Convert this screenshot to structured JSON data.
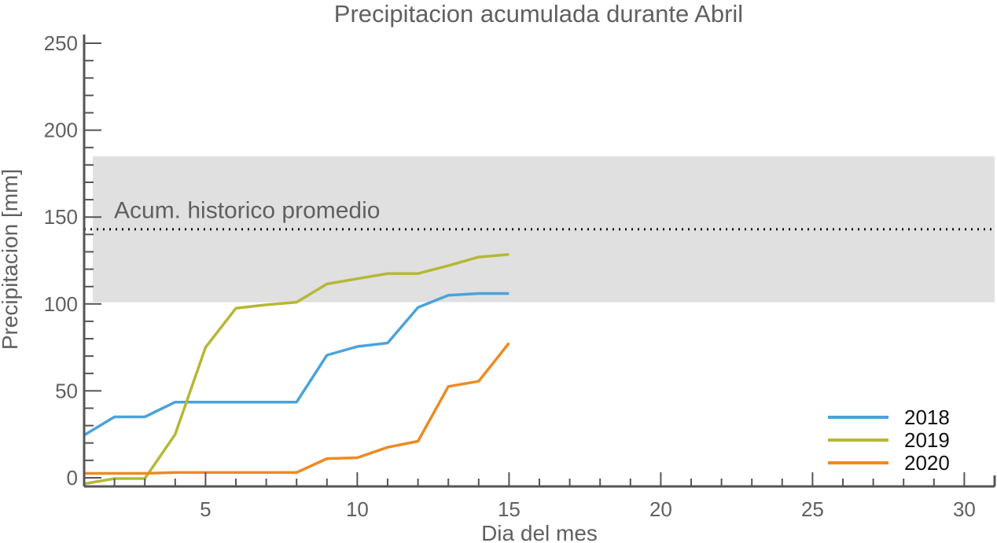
{
  "chart_data": {
    "type": "line",
    "title": "Precipitacion acumulada durante Abril",
    "xlabel": "Dia del mes",
    "ylabel": "Precipitacion [mm]",
    "xlim": [
      1,
      31
    ],
    "ylim": [
      -5,
      255
    ],
    "x_ticks": [
      5,
      10,
      15,
      20,
      25,
      30
    ],
    "y_ticks": [
      0,
      50,
      100,
      150,
      200,
      250
    ],
    "grid": false,
    "legend_position": "bottom-right",
    "historical_band": {
      "low": 101,
      "high": 185,
      "color": "#e0e0e0"
    },
    "historical_mean": {
      "value": 143,
      "label": "Acum. historico promedio"
    },
    "series": [
      {
        "name": "2018",
        "color": "#4ba3d9",
        "x": [
          1,
          2,
          3,
          4,
          5,
          6,
          7,
          8,
          9,
          10,
          11,
          12,
          13,
          14,
          15
        ],
        "values": [
          24.5,
          35,
          35,
          43.5,
          43.5,
          43.5,
          43.5,
          43.5,
          70.5,
          75.5,
          77.5,
          98,
          105,
          106,
          106
        ]
      },
      {
        "name": "2019",
        "color": "#b5b834",
        "x": [
          1,
          2,
          3,
          4,
          5,
          6,
          7,
          8,
          9,
          10,
          11,
          12,
          13,
          14,
          15
        ],
        "values": [
          -3.5,
          -0.5,
          -0.5,
          25,
          75,
          97.5,
          99.5,
          101,
          111.5,
          114.5,
          117.5,
          117.5,
          122,
          127,
          128.5
        ]
      },
      {
        "name": "2020",
        "color": "#ee8a22",
        "x": [
          1,
          2,
          3,
          4,
          5,
          6,
          7,
          8,
          9,
          10,
          11,
          12,
          13,
          14,
          15
        ],
        "values": [
          2.5,
          2.5,
          2.5,
          3,
          3,
          3,
          3,
          3,
          11,
          11.5,
          17.5,
          21,
          52.5,
          55.5,
          77.5
        ]
      }
    ]
  }
}
